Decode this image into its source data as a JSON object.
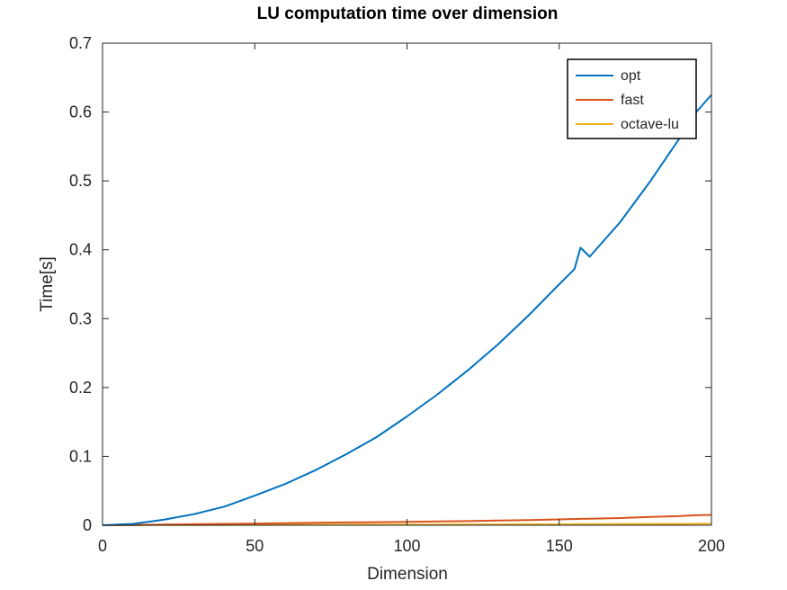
{
  "chart_data": {
    "type": "line",
    "title": "LU computation time over dimension",
    "xlabel": "Dimension",
    "ylabel": "Time[s]",
    "xlim": [
      0,
      200
    ],
    "ylim": [
      0,
      0.7
    ],
    "xticks": [
      "0",
      "50",
      "100",
      "150",
      "200"
    ],
    "yticks": [
      "0",
      "0.1",
      "0.2",
      "0.3",
      "0.4",
      "0.5",
      "0.6",
      "0.7"
    ],
    "grid": false,
    "legend_position": "top-right",
    "x": [
      0,
      10,
      20,
      30,
      40,
      50,
      60,
      70,
      80,
      90,
      100,
      110,
      120,
      130,
      140,
      150,
      155,
      157,
      160,
      170,
      180,
      190,
      195,
      200
    ],
    "series": [
      {
        "name": "opt",
        "color": "#0072bd",
        "values": [
          0,
          0.002,
          0.008,
          0.016,
          0.027,
          0.043,
          0.06,
          0.08,
          0.103,
          0.128,
          0.158,
          0.19,
          0.225,
          0.263,
          0.305,
          0.35,
          0.372,
          0.403,
          0.39,
          0.44,
          0.5,
          0.565,
          0.6,
          0.625
        ]
      },
      {
        "name": "fast",
        "color": "#d95319",
        "values": [
          0,
          0.0003,
          0.001,
          0.0015,
          0.002,
          0.0025,
          0.003,
          0.0035,
          0.004,
          0.0045,
          0.005,
          0.0055,
          0.006,
          0.0068,
          0.0075,
          0.0085,
          0.009,
          0.0093,
          0.0095,
          0.0105,
          0.012,
          0.0135,
          0.0145,
          0.015
        ]
      },
      {
        "name": "octave-lu",
        "color": "#edb120",
        "values": [
          0,
          0.0001,
          0.0002,
          0.0003,
          0.0004,
          0.0005,
          0.0006,
          0.0007,
          0.0008,
          0.0009,
          0.001,
          0.0011,
          0.0012,
          0.0013,
          0.0014,
          0.0015,
          0.0016,
          0.0016,
          0.0017,
          0.0018,
          0.0019,
          0.002,
          0.0021,
          0.0022
        ]
      }
    ]
  }
}
